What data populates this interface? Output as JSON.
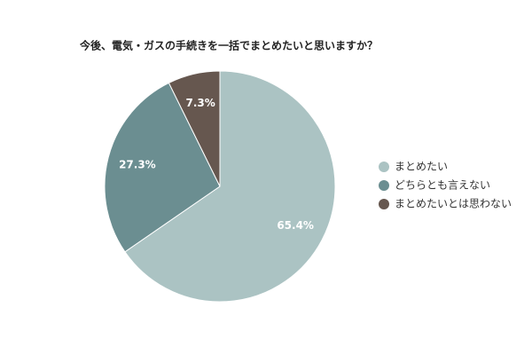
{
  "chart_data": {
    "type": "pie",
    "title": "今後、電気・ガスの手続きを一括でまとめたいと思いますか？",
    "categories": [
      "まとめたい",
      "どちらとも言えない",
      "まとめたいとは思わない"
    ],
    "values": [
      65.4,
      27.3,
      7.3
    ],
    "value_labels": [
      "65.4%",
      "27.3%",
      "7.3%"
    ],
    "colors": [
      "#abc3c3",
      "#6b8e91",
      "#66574f"
    ],
    "legend": "right"
  }
}
